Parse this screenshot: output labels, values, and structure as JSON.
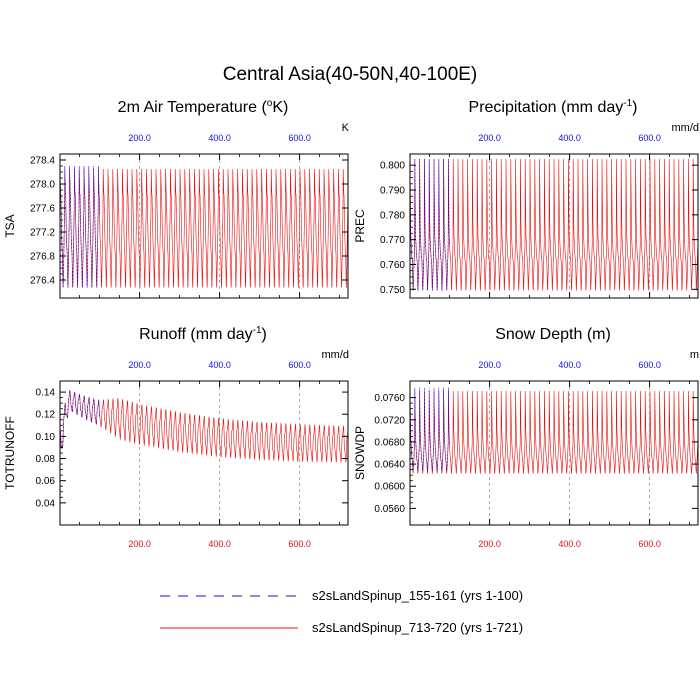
{
  "figure": {
    "title": "Central Asia(40-50N,40-100E)",
    "legend": [
      {
        "label": "s2sLandSpinup_155-161 (yrs 1-100)",
        "color": "#1010e0",
        "style": "dashed"
      },
      {
        "label": "s2sLandSpinup_713-720 (yrs 1-721)",
        "color": "#e81010",
        "style": "solid"
      }
    ],
    "colors": {
      "blue": "#1010e0",
      "red": "#e81010",
      "axis": "#000000",
      "grid": "#9a9a9a"
    }
  },
  "chart_data": [
    {
      "type": "line",
      "title": "2m Air Temperature (°K)",
      "title_main": "2m Air Temperature (",
      "title_sup": "o",
      "title_end": "K)",
      "ylabel": "TSA",
      "units": "K",
      "xlim": [
        1,
        721
      ],
      "ylim": [
        276.1,
        278.5
      ],
      "yticks": [
        276.4,
        276.8,
        277.2,
        277.6,
        278.0,
        278.4
      ],
      "yticklabels": [
        "276.4",
        "276.8",
        "277.2",
        "277.6",
        "278.0",
        "278.4"
      ],
      "xticks": [
        200,
        400,
        600
      ],
      "xticklabels": [
        "200.0",
        "400.0",
        "600.0"
      ],
      "top_axis_color": "blue",
      "bottom_axis_color": "red",
      "bottom_labels": false,
      "series": [
        {
          "name": "s2sLandSpinup_155-161 (yrs 1-100)",
          "color": "blue",
          "x_range": [
            1,
            100
          ],
          "envelope": {
            "max": 278.3,
            "min": 276.2,
            "upper_mid": 277.75,
            "lower_mid": 276.85,
            "center": 277.2
          }
        },
        {
          "name": "s2sLandSpinup_713-720 (yrs 1-721)",
          "color": "red",
          "x_range": [
            1,
            721
          ],
          "envelope": {
            "max": 278.25,
            "min": 276.2,
            "upper_mid": 277.75,
            "lower_mid": 276.85,
            "center": 277.2
          }
        }
      ]
    },
    {
      "type": "line",
      "title": "Precipitation (mm day-1)",
      "title_main": "Precipitation (mm day",
      "title_sup": "-1",
      "title_end": ")",
      "ylabel": "PREC",
      "units": "mm/d",
      "xlim": [
        1,
        721
      ],
      "ylim": [
        0.7465,
        0.8045
      ],
      "yticks": [
        0.75,
        0.76,
        0.77,
        0.78,
        0.79,
        0.8
      ],
      "yticklabels": [
        "0.750",
        "0.760",
        "0.770",
        "0.780",
        "0.790",
        "0.800"
      ],
      "xticks": [
        200,
        400,
        600
      ],
      "xticklabels": [
        "200.0",
        "400.0",
        "600.0"
      ],
      "top_axis_color": "blue",
      "bottom_axis_color": "red",
      "bottom_labels": false,
      "series": [
        {
          "name": "s2sLandSpinup_155-161 (yrs 1-100)",
          "color": "blue",
          "x_range": [
            1,
            100
          ],
          "envelope": {
            "max": 0.8025,
            "min": 0.7485,
            "upper_mid": 0.7705,
            "lower_mid": 0.7615,
            "center": 0.766
          }
        },
        {
          "name": "s2sLandSpinup_713-720 (yrs 1-721)",
          "color": "red",
          "x_range": [
            1,
            721
          ],
          "envelope": {
            "max": 0.8025,
            "min": 0.7485,
            "upper_mid": 0.7705,
            "lower_mid": 0.7615,
            "center": 0.766
          }
        }
      ]
    },
    {
      "type": "line",
      "title": "Runoff (mm day-1)",
      "title_main": "Runoff (mm day",
      "title_sup": "-1",
      "title_end": ")",
      "ylabel": "TOTRUNOFF",
      "units": "mm/d",
      "xlim": [
        1,
        721
      ],
      "ylim": [
        0.02,
        0.15
      ],
      "yticks": [
        0.04,
        0.06,
        0.08,
        0.1,
        0.12,
        0.14
      ],
      "yticklabels": [
        "0.04",
        "0.06",
        "0.08",
        "0.10",
        "0.12",
        "0.14"
      ],
      "xticks": [
        200,
        400,
        600
      ],
      "xticklabels": [
        "200.0",
        "400.0",
        "600.0"
      ],
      "top_axis_color": "blue",
      "bottom_axis_color": "red",
      "bottom_labels": true,
      "series": [
        {
          "name": "s2sLandSpinup_155-161 (yrs 1-100)",
          "color": "blue",
          "x_range": [
            1,
            100
          ],
          "trend_points": [
            [
              1,
              0.085
            ],
            [
              8,
              0.105
            ],
            [
              15,
              0.122
            ],
            [
              25,
              0.132
            ],
            [
              35,
              0.131
            ],
            [
              50,
              0.128
            ],
            [
              75,
              0.124
            ],
            [
              100,
              0.121
            ]
          ],
          "amplitude_points": [
            [
              1,
              0.015
            ],
            [
              15,
              0.009
            ],
            [
              30,
              0.008
            ],
            [
              100,
              0.01
            ]
          ]
        },
        {
          "name": "s2sLandSpinup_713-720 (yrs 1-721)",
          "color": "red",
          "x_range": [
            1,
            721
          ],
          "trend_points": [
            [
              1,
              0.085
            ],
            [
              8,
              0.105
            ],
            [
              15,
              0.122
            ],
            [
              25,
              0.132
            ],
            [
              35,
              0.131
            ],
            [
              50,
              0.128
            ],
            [
              100,
              0.121
            ],
            [
              200,
              0.111
            ],
            [
              300,
              0.104
            ],
            [
              400,
              0.099
            ],
            [
              500,
              0.096
            ],
            [
              600,
              0.094
            ],
            [
              721,
              0.093
            ]
          ],
          "amplitude_points": [
            [
              1,
              0.015
            ],
            [
              15,
              0.009
            ],
            [
              30,
              0.008
            ],
            [
              100,
              0.01
            ],
            [
              150,
              0.016
            ],
            [
              721,
              0.014
            ]
          ]
        }
      ]
    },
    {
      "type": "line",
      "title": "Snow Depth (m)",
      "ylabel": "SNOWDP",
      "units": "m",
      "xlim": [
        1,
        721
      ],
      "ylim": [
        0.053,
        0.079
      ],
      "yticks": [
        0.056,
        0.06,
        0.064,
        0.068,
        0.072,
        0.076
      ],
      "yticklabels": [
        "0.0560",
        "0.0600",
        "0.0640",
        "0.0680",
        "0.0720",
        "0.0760"
      ],
      "xticks": [
        200,
        400,
        600
      ],
      "xticklabels": [
        "200.0",
        "400.0",
        "600.0"
      ],
      "top_axis_color": "blue",
      "bottom_axis_color": "red",
      "bottom_labels": true,
      "series": [
        {
          "name": "s2sLandSpinup_155-161 (yrs 1-100)",
          "color": "blue",
          "x_range": [
            1,
            100
          ],
          "envelope": {
            "max": 0.0778,
            "min": 0.0625,
            "upper_mid": 0.0685,
            "lower_mid": 0.0645,
            "center": 0.0665
          }
        },
        {
          "name": "s2sLandSpinup_713-720 (yrs 1-721)",
          "color": "red",
          "x_range": [
            1,
            721
          ],
          "envelope": {
            "max": 0.0772,
            "min": 0.062,
            "upper_mid": 0.0685,
            "lower_mid": 0.0645,
            "center": 0.0665
          }
        }
      ]
    }
  ]
}
